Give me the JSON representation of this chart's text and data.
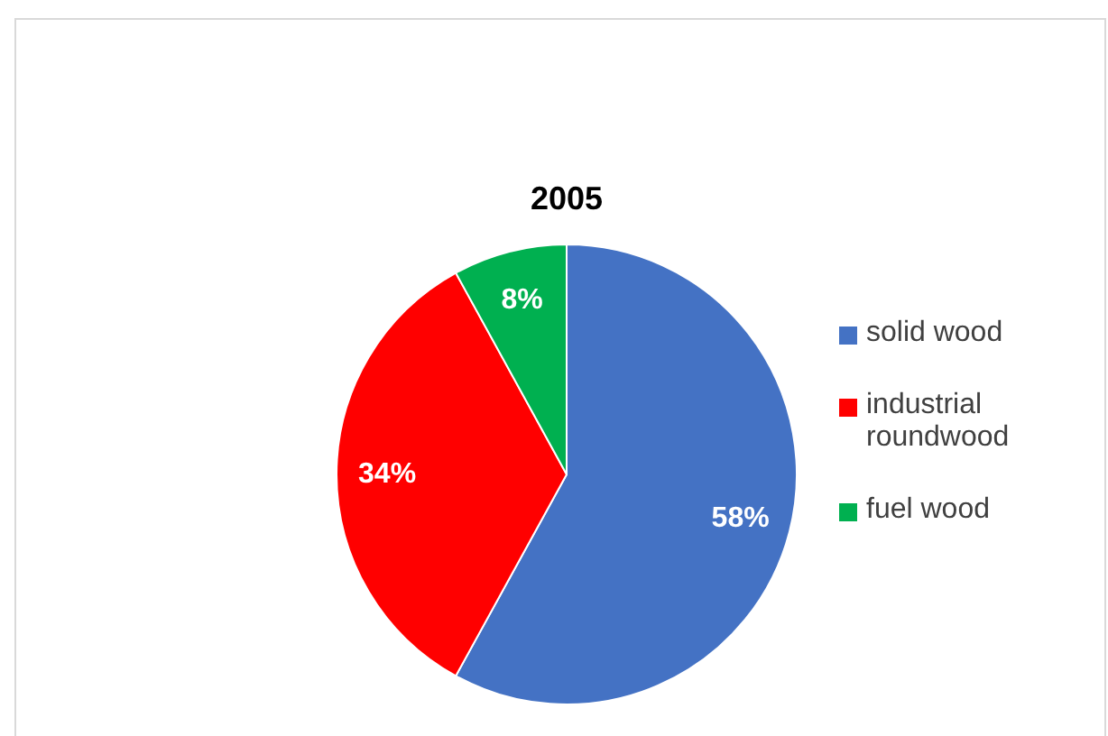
{
  "chart_data": {
    "type": "pie",
    "title": "2005",
    "categories": [
      "solid wood",
      "industrial roundwood",
      "fuel wood"
    ],
    "values": [
      58,
      34,
      8
    ],
    "colors": [
      "#4472c4",
      "#ff0000",
      "#00b050"
    ],
    "value_labels": [
      "58%",
      "34%",
      "8%"
    ],
    "legend": "right"
  }
}
